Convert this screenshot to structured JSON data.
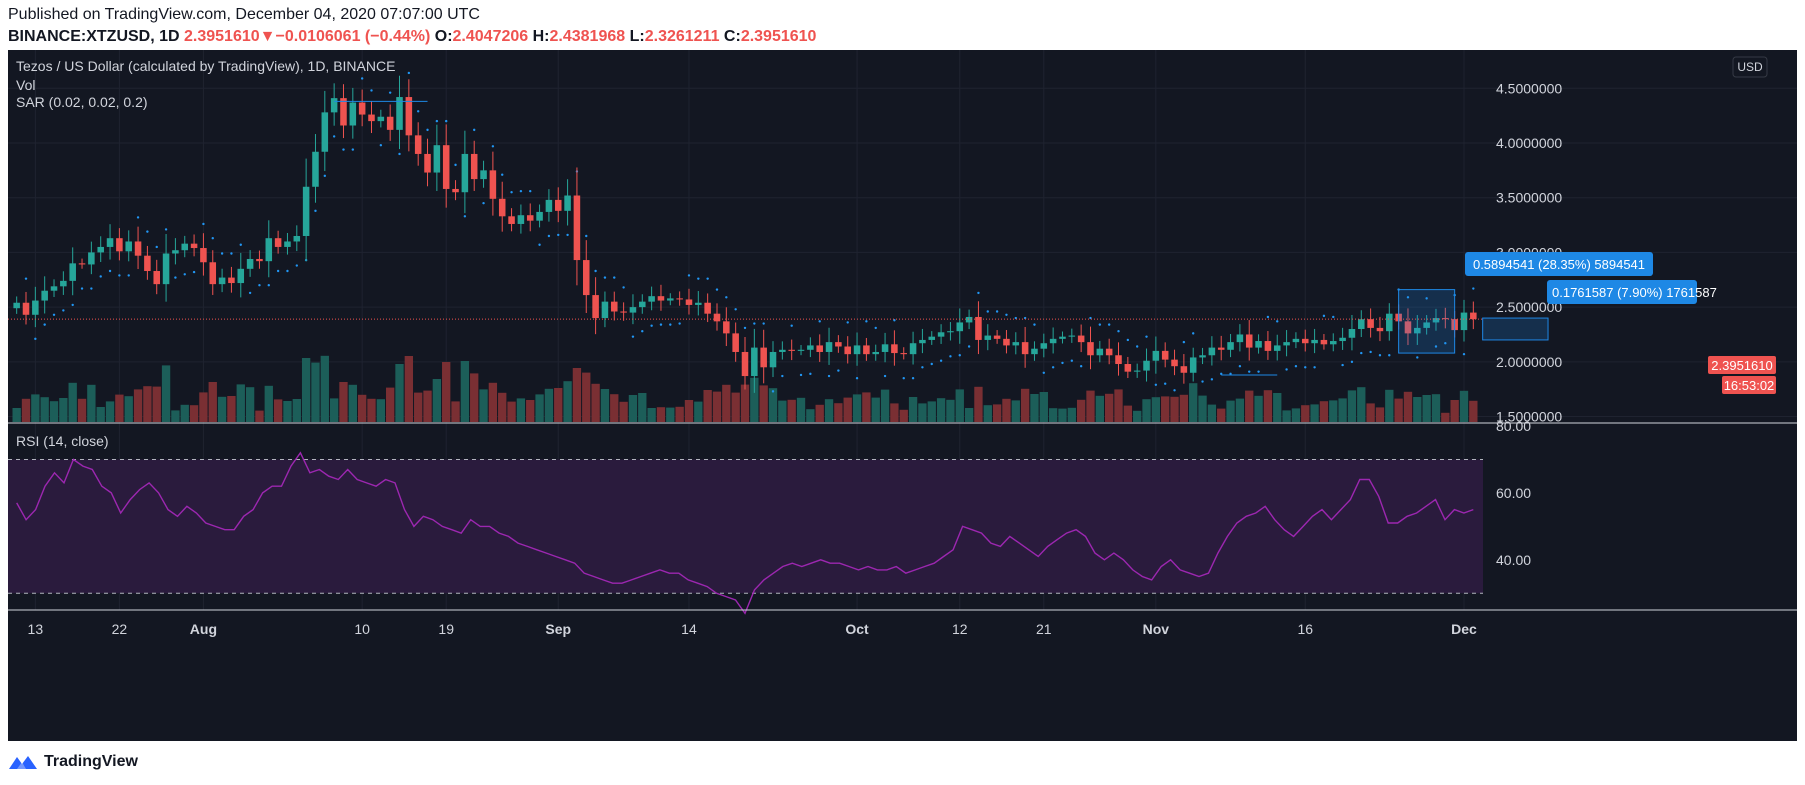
{
  "header": {
    "published": "Published on TradingView.com, December 04, 2020 07:07:00 UTC",
    "symbol": "BINANCE:XTZUSD, 1D",
    "last": "2.3951610",
    "arrow": "▼",
    "change": "−0.0106061 (−0.44%)",
    "o_label": "O:",
    "o_value": "2.4047206",
    "h_label": "H:",
    "h_value": "2.4381968",
    "l_label": "L:",
    "l_value": "2.3261211",
    "c_label": "C:",
    "c_value": "2.3951610"
  },
  "legend": {
    "title": "Tezos / US Dollar (calculated by TradingView), 1D, BINANCE",
    "vol": "Vol",
    "sar": "SAR (0.02, 0.02, 0.2)",
    "rsi": "RSI (14, close)"
  },
  "currency_button": "USD",
  "price_tag": "2.3951610",
  "countdown": "16:53:02",
  "measure_labels": [
    "0.5894541 (28.35%) 5894541",
    "0.1761587 (7.90%) 1761587"
  ],
  "footer": {
    "brand": "TradingView"
  },
  "colors": {
    "up": "#26a69a",
    "down": "#ef5350",
    "sar": "#2196f3",
    "rsi": "#9c27b0",
    "label": "#1e88e5",
    "bg": "#131722"
  },
  "chart_data": [
    {
      "type": "candlestick",
      "title": "Tezos / US Dollar (calculated by TradingView), 1D, BINANCE",
      "ylim": [
        1.45,
        4.85
      ],
      "y_ticks": [
        "4.5000000",
        "4.0000000",
        "3.5000000",
        "3.0000000",
        "2.5000000",
        "2.0000000",
        "1.5000000"
      ],
      "x_ticks": [
        "13",
        "22",
        "Aug",
        "10",
        "19",
        "Sep",
        "14",
        "Oct",
        "12",
        "21",
        "Nov",
        "16",
        "Dec"
      ],
      "x_tick_index": [
        2,
        11,
        20,
        37,
        46,
        58,
        72,
        90,
        101,
        110,
        122,
        138,
        155
      ],
      "series_close": [
        2.54,
        2.43,
        2.56,
        2.65,
        2.69,
        2.74,
        2.9,
        2.89,
        3.0,
        3.05,
        3.13,
        3.01,
        3.1,
        2.97,
        2.83,
        2.71,
        2.99,
        3.02,
        3.08,
        3.04,
        2.91,
        2.71,
        2.77,
        2.72,
        2.85,
        2.94,
        2.92,
        3.13,
        3.05,
        3.1,
        3.15,
        3.6,
        3.92,
        4.28,
        4.41,
        4.16,
        4.37,
        4.26,
        4.2,
        4.24,
        4.12,
        4.42,
        4.07,
        3.9,
        3.73,
        3.98,
        3.58,
        3.55,
        3.9,
        3.67,
        3.75,
        3.49,
        3.33,
        3.26,
        3.34,
        3.29,
        3.37,
        3.48,
        3.38,
        3.52,
        2.93,
        2.61,
        2.4,
        2.55,
        2.46,
        2.45,
        2.5,
        2.55,
        2.6,
        2.56,
        2.58,
        2.57,
        2.52,
        2.54,
        2.44,
        2.37,
        2.26,
        2.09,
        1.87,
        2.13,
        1.95,
        2.09,
        2.11,
        2.1,
        2.11,
        2.15,
        2.09,
        2.18,
        2.14,
        2.07,
        2.15,
        2.07,
        2.09,
        2.16,
        2.08,
        2.07,
        2.17,
        2.2,
        2.23,
        2.27,
        2.28,
        2.36,
        2.41,
        2.2,
        2.24,
        2.21,
        2.15,
        2.18,
        2.07,
        2.12,
        2.17,
        2.21,
        2.23,
        2.24,
        2.18,
        2.06,
        2.12,
        2.06,
        1.98,
        1.91,
        1.92,
        2.01,
        2.1,
        2.02,
        1.96,
        1.9,
        2.04,
        2.06,
        2.13,
        2.11,
        2.18,
        2.25,
        2.13,
        2.19,
        2.1,
        2.15,
        2.18,
        2.21,
        2.17,
        2.2,
        2.16,
        2.19,
        2.22,
        2.3,
        2.39,
        2.31,
        2.28,
        2.44,
        2.37,
        2.26,
        2.31,
        2.36,
        2.4,
        2.39,
        2.29,
        2.45,
        2.39
      ]
    },
    {
      "type": "line",
      "title": "RSI (14, close)",
      "ylim": [
        25,
        80
      ],
      "y_ticks": [
        "80.00",
        "60.00",
        "40.00"
      ],
      "bands": [
        30,
        70
      ],
      "values": [
        57,
        52,
        55,
        62,
        66,
        63,
        70,
        68,
        67,
        62,
        60,
        54,
        58,
        61,
        63,
        60,
        55,
        53,
        56,
        54,
        51,
        50,
        49,
        49,
        53,
        55,
        60,
        62,
        62,
        68,
        72,
        66,
        67,
        65,
        64,
        67,
        64,
        63,
        62,
        64,
        63,
        55,
        50,
        53,
        52,
        50,
        49,
        48,
        52,
        50,
        50,
        48,
        47,
        45,
        44,
        43,
        42,
        41,
        40,
        39,
        36,
        35,
        34,
        33,
        33,
        34,
        35,
        36,
        37,
        36,
        36,
        34,
        33,
        32,
        30,
        29,
        28,
        24,
        31,
        34,
        36,
        38,
        39,
        38,
        39,
        40,
        39,
        39,
        38,
        37,
        38,
        37,
        37,
        38,
        36,
        37,
        38,
        39,
        41,
        43,
        50,
        49,
        48,
        45,
        44,
        47,
        45,
        43,
        41,
        44,
        46,
        48,
        49,
        47,
        42,
        40,
        42,
        40,
        37,
        35,
        34,
        38,
        40,
        37,
        36,
        35,
        36,
        42,
        47,
        51,
        53,
        54,
        56,
        52,
        49,
        47,
        50,
        53,
        55,
        52,
        55,
        58,
        64,
        64,
        59,
        51,
        51,
        53,
        54,
        56,
        58,
        52,
        55,
        54,
        55
      ]
    }
  ]
}
